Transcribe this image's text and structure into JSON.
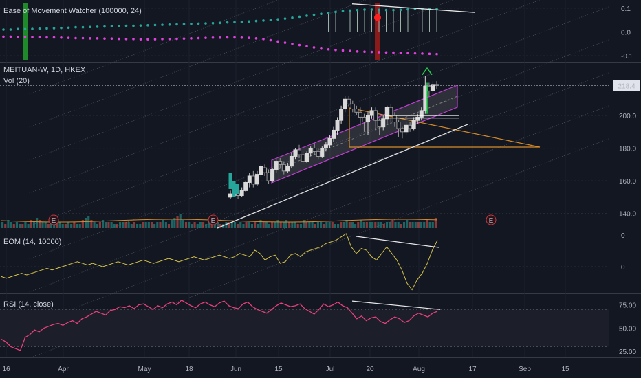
{
  "colors": {
    "background": "#131722",
    "bull": "#26a69a",
    "bear": "#ef5350",
    "candle_up": "#d9d9d9",
    "candle_down": "#9a9a9a",
    "channel": "#c43cd6",
    "trend": "#e0e0e0",
    "triangle": "#d68b28",
    "eom_line": "#d4c24a",
    "rsi_line": "#e8407a",
    "green_arrow": "#22d14a",
    "up_dots": "#26a69a",
    "down_dots": "#e040e0",
    "earnings": "#c23b43"
  },
  "panes": {
    "emw": {
      "title": "Ease of Movement Watcher (100000, 24)",
      "ticks": [
        "0.1",
        "0.0",
        "-0.1"
      ]
    },
    "price": {
      "title": "MEITUAN-W, 1D, HKEX",
      "subtitle": "Vol (20)",
      "ticks": [
        "200.0",
        "180.0",
        "160.0",
        "140.0"
      ],
      "last_price": "218.4",
      "earnings_label": "E"
    },
    "eom": {
      "title": "EOM (14, 10000)",
      "ticks": [
        "0",
        "0"
      ]
    },
    "rsi": {
      "title": "RSI (14, close)",
      "ticks": [
        "75.00",
        "50.00",
        "25.00"
      ]
    }
  },
  "x_axis": {
    "labels": [
      "16",
      "Apr",
      "May",
      "18",
      "Jun",
      "15",
      "Jul",
      "20",
      "Aug",
      "17",
      "Sep",
      "15"
    ]
  },
  "chart_data": [
    {
      "type": "candlestick",
      "title": "MEITUAN-W, 1D, HKEX",
      "ylim": [
        131,
        232
      ],
      "last": 218.4,
      "candles": [
        [
          150,
          152,
          154,
          149
        ],
        [
          151,
          153,
          155,
          150
        ],
        [
          152,
          151,
          154,
          149
        ],
        [
          151,
          154,
          156,
          150
        ],
        [
          154,
          159,
          160,
          153
        ],
        [
          159,
          163,
          165,
          156
        ],
        [
          163,
          158,
          166,
          156
        ],
        [
          158,
          164,
          166,
          157
        ],
        [
          164,
          169,
          170,
          162
        ],
        [
          168,
          165,
          170,
          163
        ],
        [
          165,
          160,
          167,
          158
        ],
        [
          160,
          167,
          168,
          159
        ],
        [
          167,
          172,
          173,
          165
        ],
        [
          172,
          170,
          174,
          168
        ],
        [
          170,
          166,
          172,
          164
        ],
        [
          166,
          169,
          171,
          165
        ],
        [
          169,
          175,
          177,
          168
        ],
        [
          175,
          179,
          180,
          173
        ],
        [
          179,
          176,
          182,
          174
        ],
        [
          176,
          172,
          178,
          170
        ],
        [
          172,
          177,
          178,
          171
        ],
        [
          177,
          180,
          181,
          175
        ],
        [
          180,
          178,
          183,
          176
        ],
        [
          178,
          175,
          180,
          173
        ],
        [
          175,
          180,
          181,
          174
        ],
        [
          180,
          182,
          184,
          178
        ],
        [
          182,
          186,
          188,
          180
        ],
        [
          186,
          191,
          193,
          184
        ],
        [
          191,
          197,
          199,
          188
        ],
        [
          197,
          204,
          206,
          195
        ],
        [
          204,
          210,
          212,
          202
        ],
        [
          210,
          207,
          212,
          205
        ],
        [
          207,
          204,
          209,
          202
        ],
        [
          204,
          202,
          206,
          200
        ],
        [
          202,
          199,
          205,
          194
        ],
        [
          199,
          196,
          201,
          190
        ],
        [
          196,
          200,
          202,
          188
        ],
        [
          200,
          203,
          205,
          198
        ],
        [
          203,
          197,
          205,
          191
        ],
        [
          197,
          193,
          198,
          188
        ],
        [
          193,
          198,
          200,
          191
        ],
        [
          198,
          205,
          206,
          195
        ],
        [
          205,
          200,
          207,
          196
        ],
        [
          200,
          196,
          202,
          193
        ],
        [
          196,
          192,
          197,
          187
        ],
        [
          192,
          190,
          193,
          186
        ],
        [
          190,
          194,
          196,
          188
        ],
        [
          194,
          192,
          196,
          190
        ],
        [
          192,
          197,
          199,
          191
        ],
        [
          197,
          199,
          201,
          195
        ],
        [
          199,
          203,
          205,
          197
        ],
        [
          203,
          218,
          224,
          201
        ],
        [
          218,
          215,
          220,
          212
        ],
        [
          215,
          219,
          221,
          213
        ],
        [
          219,
          218.4,
          221,
          216
        ]
      ]
    },
    {
      "type": "bar",
      "title": "Vol (20)",
      "values": [
        3,
        2,
        4,
        3,
        2,
        3,
        2,
        2,
        3,
        2,
        4,
        3,
        5,
        4,
        3,
        3,
        2,
        3,
        4,
        3,
        3,
        2,
        2,
        3,
        2,
        3,
        2,
        2,
        4,
        5,
        6,
        4,
        3,
        2,
        3,
        4,
        3,
        3,
        3,
        2,
        2,
        3,
        3,
        3,
        3,
        2,
        3,
        2,
        2,
        3,
        3,
        3,
        3,
        2,
        3,
        3,
        4,
        3,
        2,
        4,
        5,
        6,
        7,
        4,
        3,
        3,
        2,
        3,
        2,
        3,
        3,
        2,
        3,
        3,
        2,
        3,
        2,
        2,
        3,
        3,
        3,
        3,
        2,
        3,
        2,
        3,
        3,
        2,
        3,
        2,
        4,
        3,
        3,
        2,
        3,
        3,
        4,
        3,
        3,
        4,
        3,
        3,
        3,
        2,
        2,
        4,
        3,
        3,
        3,
        2,
        3,
        3,
        2,
        3,
        3,
        3,
        2,
        2,
        3,
        3,
        4,
        3,
        3,
        2,
        3,
        4,
        3,
        3,
        3,
        3,
        3,
        3,
        3,
        2,
        3,
        3,
        4,
        3,
        3,
        2,
        3,
        4,
        3,
        3,
        3,
        3,
        3,
        3,
        4,
        3,
        3,
        5
      ]
    },
    {
      "type": "line",
      "title": "EOM (14, 10000)",
      "values": [
        -0.3,
        -0.35,
        -0.3,
        -0.25,
        -0.2,
        -0.25,
        -0.2,
        -0.15,
        -0.1,
        -0.05,
        -0.1,
        -0.05,
        0,
        0.05,
        0.1,
        0.15,
        0.1,
        0.05,
        0.1,
        0.05,
        0,
        0.05,
        0.1,
        0.15,
        0.1,
        0.05,
        0.1,
        0.15,
        0.2,
        0.15,
        0.1,
        0.15,
        0.2,
        0.25,
        0.2,
        0.15,
        0.2,
        0.25,
        0.3,
        0.25,
        0.2,
        0.25,
        0.3,
        0.35,
        0.3,
        0.25,
        0.3,
        0.4,
        0.35,
        0.3,
        0.5,
        0.4,
        0.2,
        0.3,
        0.35,
        0.1,
        0.15,
        0.35,
        0.4,
        0.3,
        0.45,
        0.5,
        0.55,
        0.6,
        0.7,
        0.75,
        0.8,
        0.9,
        1.0,
        0.6,
        0.4,
        0.55,
        0.5,
        0.3,
        0.2,
        0.4,
        0.6,
        0.4,
        0.2,
        -0.1,
        -0.5,
        -0.7,
        -0.4,
        -0.2,
        0.1,
        0.5,
        0.8
      ]
    },
    {
      "type": "line",
      "title": "RSI (14, close)",
      "ylim": [
        20,
        85
      ],
      "values": [
        38,
        35,
        30,
        28,
        26,
        40,
        43,
        48,
        46,
        50,
        52,
        54,
        55,
        53,
        56,
        58,
        55,
        60,
        62,
        65,
        68,
        66,
        64,
        69,
        70,
        73,
        72,
        74,
        71,
        75,
        76,
        73,
        70,
        74,
        72,
        76,
        78,
        75,
        80,
        77,
        74,
        72,
        76,
        78,
        75,
        73,
        77,
        79,
        74,
        72,
        71,
        76,
        78,
        73,
        70,
        68,
        66,
        70,
        74,
        77,
        75,
        73,
        74,
        76,
        71,
        68,
        65,
        70,
        76,
        73,
        75,
        78,
        74,
        72,
        66,
        60,
        63,
        58,
        61,
        62,
        57,
        55,
        59,
        62,
        60,
        56,
        58,
        63,
        66,
        64,
        62,
        66,
        68
      ]
    },
    {
      "type": "dots",
      "title": "Ease of Movement Watcher (100000, 24)",
      "ylim": [
        -0.12,
        0.12
      ],
      "upper": [
        0.01,
        0.01,
        0.012,
        0.012,
        0.013,
        0.014,
        0.015,
        0.016,
        0.017,
        0.018,
        0.02,
        0.02,
        0.021,
        0.022,
        0.023,
        0.024,
        0.025,
        0.026,
        0.026,
        0.027,
        0.028,
        0.029,
        0.03,
        0.031,
        0.032,
        0.033,
        0.034,
        0.035,
        0.036,
        0.037,
        0.038,
        0.04,
        0.041,
        0.042,
        0.044,
        0.046,
        0.048,
        0.05,
        0.053,
        0.056,
        0.06,
        0.064,
        0.068,
        0.072,
        0.076,
        0.08,
        0.084,
        0.088,
        0.09,
        0.092,
        0.094,
        0.094,
        0.093,
        0.092,
        0.092,
        0.093,
        0.095,
        0.096,
        0.097,
        0.097,
        0.096
      ],
      "lower": [
        -0.02,
        -0.02,
        -0.021,
        -0.021,
        -0.022,
        -0.022,
        -0.023,
        -0.023,
        -0.024,
        -0.025,
        -0.026,
        -0.026,
        -0.027,
        -0.027,
        -0.028,
        -0.028,
        -0.029,
        -0.03,
        -0.03,
        -0.031,
        -0.031,
        -0.031,
        -0.03,
        -0.03,
        -0.029,
        -0.028,
        -0.027,
        -0.026,
        -0.025,
        -0.024,
        -0.024,
        -0.023,
        -0.023,
        -0.024,
        -0.025,
        -0.027,
        -0.03,
        -0.035,
        -0.04,
        -0.045,
        -0.05,
        -0.055,
        -0.06,
        -0.065,
        -0.07,
        -0.073,
        -0.076,
        -0.078,
        -0.08,
        -0.082,
        -0.083,
        -0.084,
        -0.085,
        -0.086,
        -0.087,
        -0.088,
        -0.089,
        -0.09,
        -0.091,
        -0.092,
        -0.093
      ]
    }
  ]
}
